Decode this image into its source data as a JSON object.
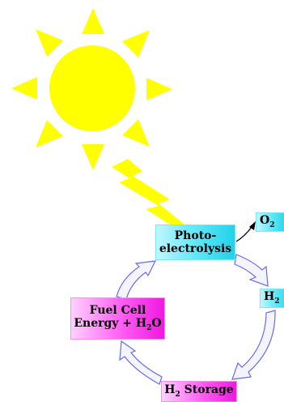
{
  "diagram": {
    "nodes": {
      "photoelectrolysis": {
        "line1": "Photo-",
        "line2": "electrolysis"
      },
      "oxygen": {
        "base": "O",
        "sub": "2"
      },
      "hydrogen": {
        "base": "H",
        "sub": "2"
      },
      "storage": {
        "base": "H",
        "sub": "2",
        "rest": " Storage"
      },
      "fuel_cell": {
        "line1": "Fuel Cell",
        "line2_base": "Energy + H",
        "line2_sub": "2",
        "line2_rest": "O"
      }
    },
    "colors": {
      "sun": "#ffff00",
      "photo_box": "#33dcf0",
      "fuel_box": "#ff3cf0",
      "arrow_fill": "#f4f4ff",
      "arrow_stroke": "#6a6aee"
    },
    "icons": [
      "sun-icon",
      "lightning-bolt-icon"
    ]
  }
}
